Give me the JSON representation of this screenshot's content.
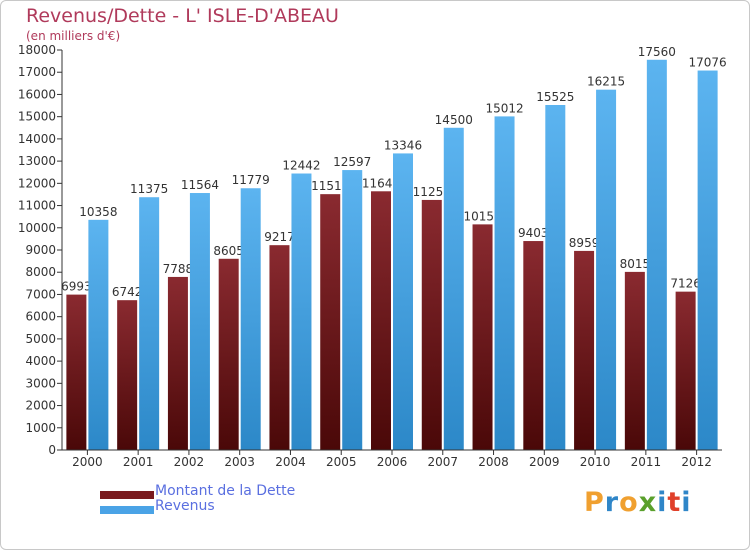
{
  "header": {
    "title": "Revenus/Dette - L' ISLE-D'ABEAU",
    "subtitle": "(en milliers d'€)"
  },
  "legend": {
    "dette_label": "Montant de la Dette",
    "revenus_label": "Revenus"
  },
  "logo": {
    "letters": [
      "P",
      "r",
      "o",
      "x",
      "i",
      "t",
      "i"
    ],
    "colors": [
      "#f0a030",
      "#2f86c8",
      "#f0a030",
      "#5aa02c",
      "#2f86c8",
      "#e0402a",
      "#2f86c8"
    ]
  },
  "colors": {
    "dette": "#7a1a1e",
    "revenus": "#4aa3e6",
    "axis": "#333333",
    "grid": "#d8d8d8"
  },
  "chart_data": {
    "type": "bar",
    "title": "Revenus/Dette - L' ISLE-D'ABEAU",
    "subtitle": "(en milliers d'€)",
    "categories": [
      "2000",
      "2001",
      "2002",
      "2003",
      "2004",
      "2005",
      "2006",
      "2007",
      "2008",
      "2009",
      "2010",
      "2011",
      "2012"
    ],
    "series": [
      {
        "name": "Montant de la Dette",
        "values": [
          6993,
          6742,
          7788,
          8605,
          9217,
          11513,
          11642,
          11253,
          10153,
          9403,
          8959,
          8015,
          7126
        ]
      },
      {
        "name": "Revenus",
        "values": [
          10358,
          11375,
          11564,
          11779,
          12442,
          12597,
          13346,
          14500,
          15012,
          15525,
          16215,
          17560,
          17076
        ]
      }
    ],
    "ylim": [
      0,
      18000
    ],
    "ytick_step": 1000,
    "grid": false,
    "legend": "bottom-left"
  }
}
